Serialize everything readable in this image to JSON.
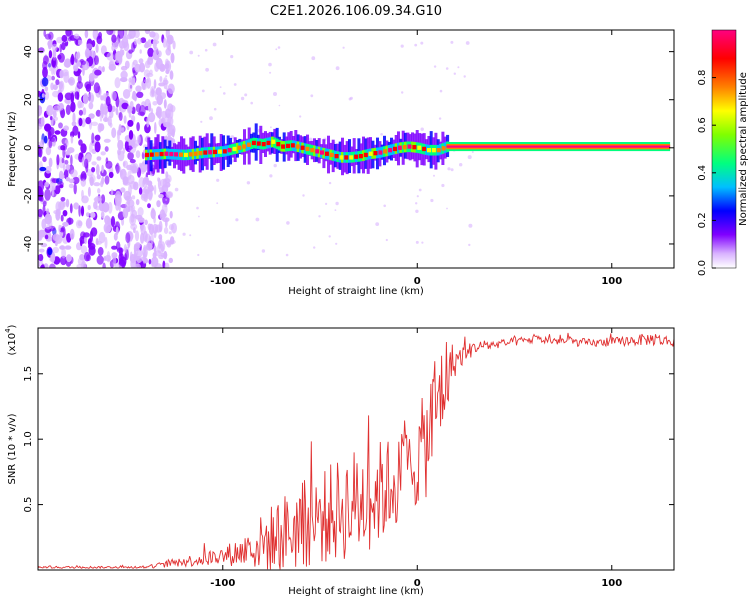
{
  "title": "C2E1.2026.106.09.34.G10",
  "chart_data": [
    {
      "type": "heatmap",
      "title": "C2E1.2026.106.09.34.G10",
      "xlabel": "Height of straight line (km)",
      "ylabel": "Frequency (Hz)",
      "xlim": [
        -195,
        132
      ],
      "ylim": [
        -50,
        49
      ],
      "xticks": [
        -100,
        0,
        100
      ],
      "xtick_labels": [
        "-100",
        "0",
        "100"
      ],
      "yticks": [
        -40,
        -20,
        0,
        20,
        40
      ],
      "ytick_labels": [
        "-40",
        "-20",
        "0",
        "20",
        "40"
      ],
      "noise_region_x": [
        -195,
        -125
      ],
      "ridge": {
        "x": [
          -140,
          -130,
          -120,
          -110,
          -100,
          -90,
          -85,
          -80,
          -75,
          -70,
          -65,
          -60,
          -55,
          -50,
          -45,
          -40,
          -35,
          -30,
          -25,
          -20,
          -15,
          -10,
          -5,
          0,
          5,
          10,
          15,
          130
        ],
        "freq": [
          -3,
          -2.5,
          -3,
          -2,
          -1.5,
          0.5,
          2,
          1.5,
          2.5,
          0.5,
          1,
          0,
          -1,
          -2,
          -3,
          -4,
          -4,
          -3.5,
          -2.5,
          -2,
          -1,
          0,
          0.5,
          0,
          -1,
          -1,
          0.5,
          0.5
        ]
      },
      "colorbar": {
        "label": "Normalized spectral amplitude",
        "range": [
          0,
          1
        ],
        "ticks": [
          0.0,
          0.2,
          0.4,
          0.6,
          0.8
        ],
        "tick_labels": [
          "0.0",
          "0.2",
          "0.4",
          "0.6",
          "0.8"
        ],
        "colors": [
          "#ffffff",
          "#d9b3ff",
          "#8000ff",
          "#0000ff",
          "#00bfff",
          "#00ff80",
          "#80ff00",
          "#ffff00",
          "#ff8000",
          "#ff0000",
          "#ff0080"
        ]
      },
      "grid": false
    },
    {
      "type": "line",
      "xlabel": "Height of straight line (km)",
      "ylabel": "SNR (10 * v/v)",
      "scale_label": "(x10",
      "scale_exponent": "4",
      "scale_suffix": ")",
      "xlim": [
        -195,
        132
      ],
      "ylim": [
        0,
        1.85
      ],
      "xticks": [
        -100,
        0,
        100
      ],
      "xtick_labels": [
        "-100",
        "0",
        "100"
      ],
      "yticks": [
        0.5,
        1.0,
        1.5
      ],
      "ytick_labels": [
        "0.5",
        "1.0",
        "1.5"
      ],
      "series": [
        {
          "name": "SNR",
          "color": "#e03030",
          "envelope": {
            "x": [
              -195,
              -140,
              -130,
              -120,
              -110,
              -100,
              -90,
              -80,
              -70,
              -60,
              -50,
              -40,
              -30,
              -20,
              -10,
              0,
              5,
              10,
              15,
              20,
              30,
              40,
              50,
              60,
              70,
              80,
              90,
              100,
              110,
              120,
              132
            ],
            "base": [
              0.02,
              0.02,
              0.04,
              0.06,
              0.08,
              0.1,
              0.13,
              0.18,
              0.24,
              0.3,
              0.36,
              0.42,
              0.48,
              0.55,
              0.65,
              0.8,
              0.95,
              1.2,
              1.45,
              1.6,
              1.7,
              1.72,
              1.74,
              1.76,
              1.75,
              1.74,
              1.73,
              1.74,
              1.75,
              1.76,
              1.74
            ],
            "spread": [
              0.01,
              0.01,
              0.03,
              0.05,
              0.07,
              0.09,
              0.15,
              0.28,
              0.38,
              0.42,
              0.45,
              0.5,
              0.55,
              0.5,
              0.45,
              0.45,
              0.55,
              0.65,
              0.4,
              0.12,
              0.06,
              0.04,
              0.04,
              0.04,
              0.04,
              0.04,
              0.04,
              0.04,
              0.05,
              0.06,
              0.05
            ]
          }
        }
      ],
      "grid": false
    }
  ]
}
